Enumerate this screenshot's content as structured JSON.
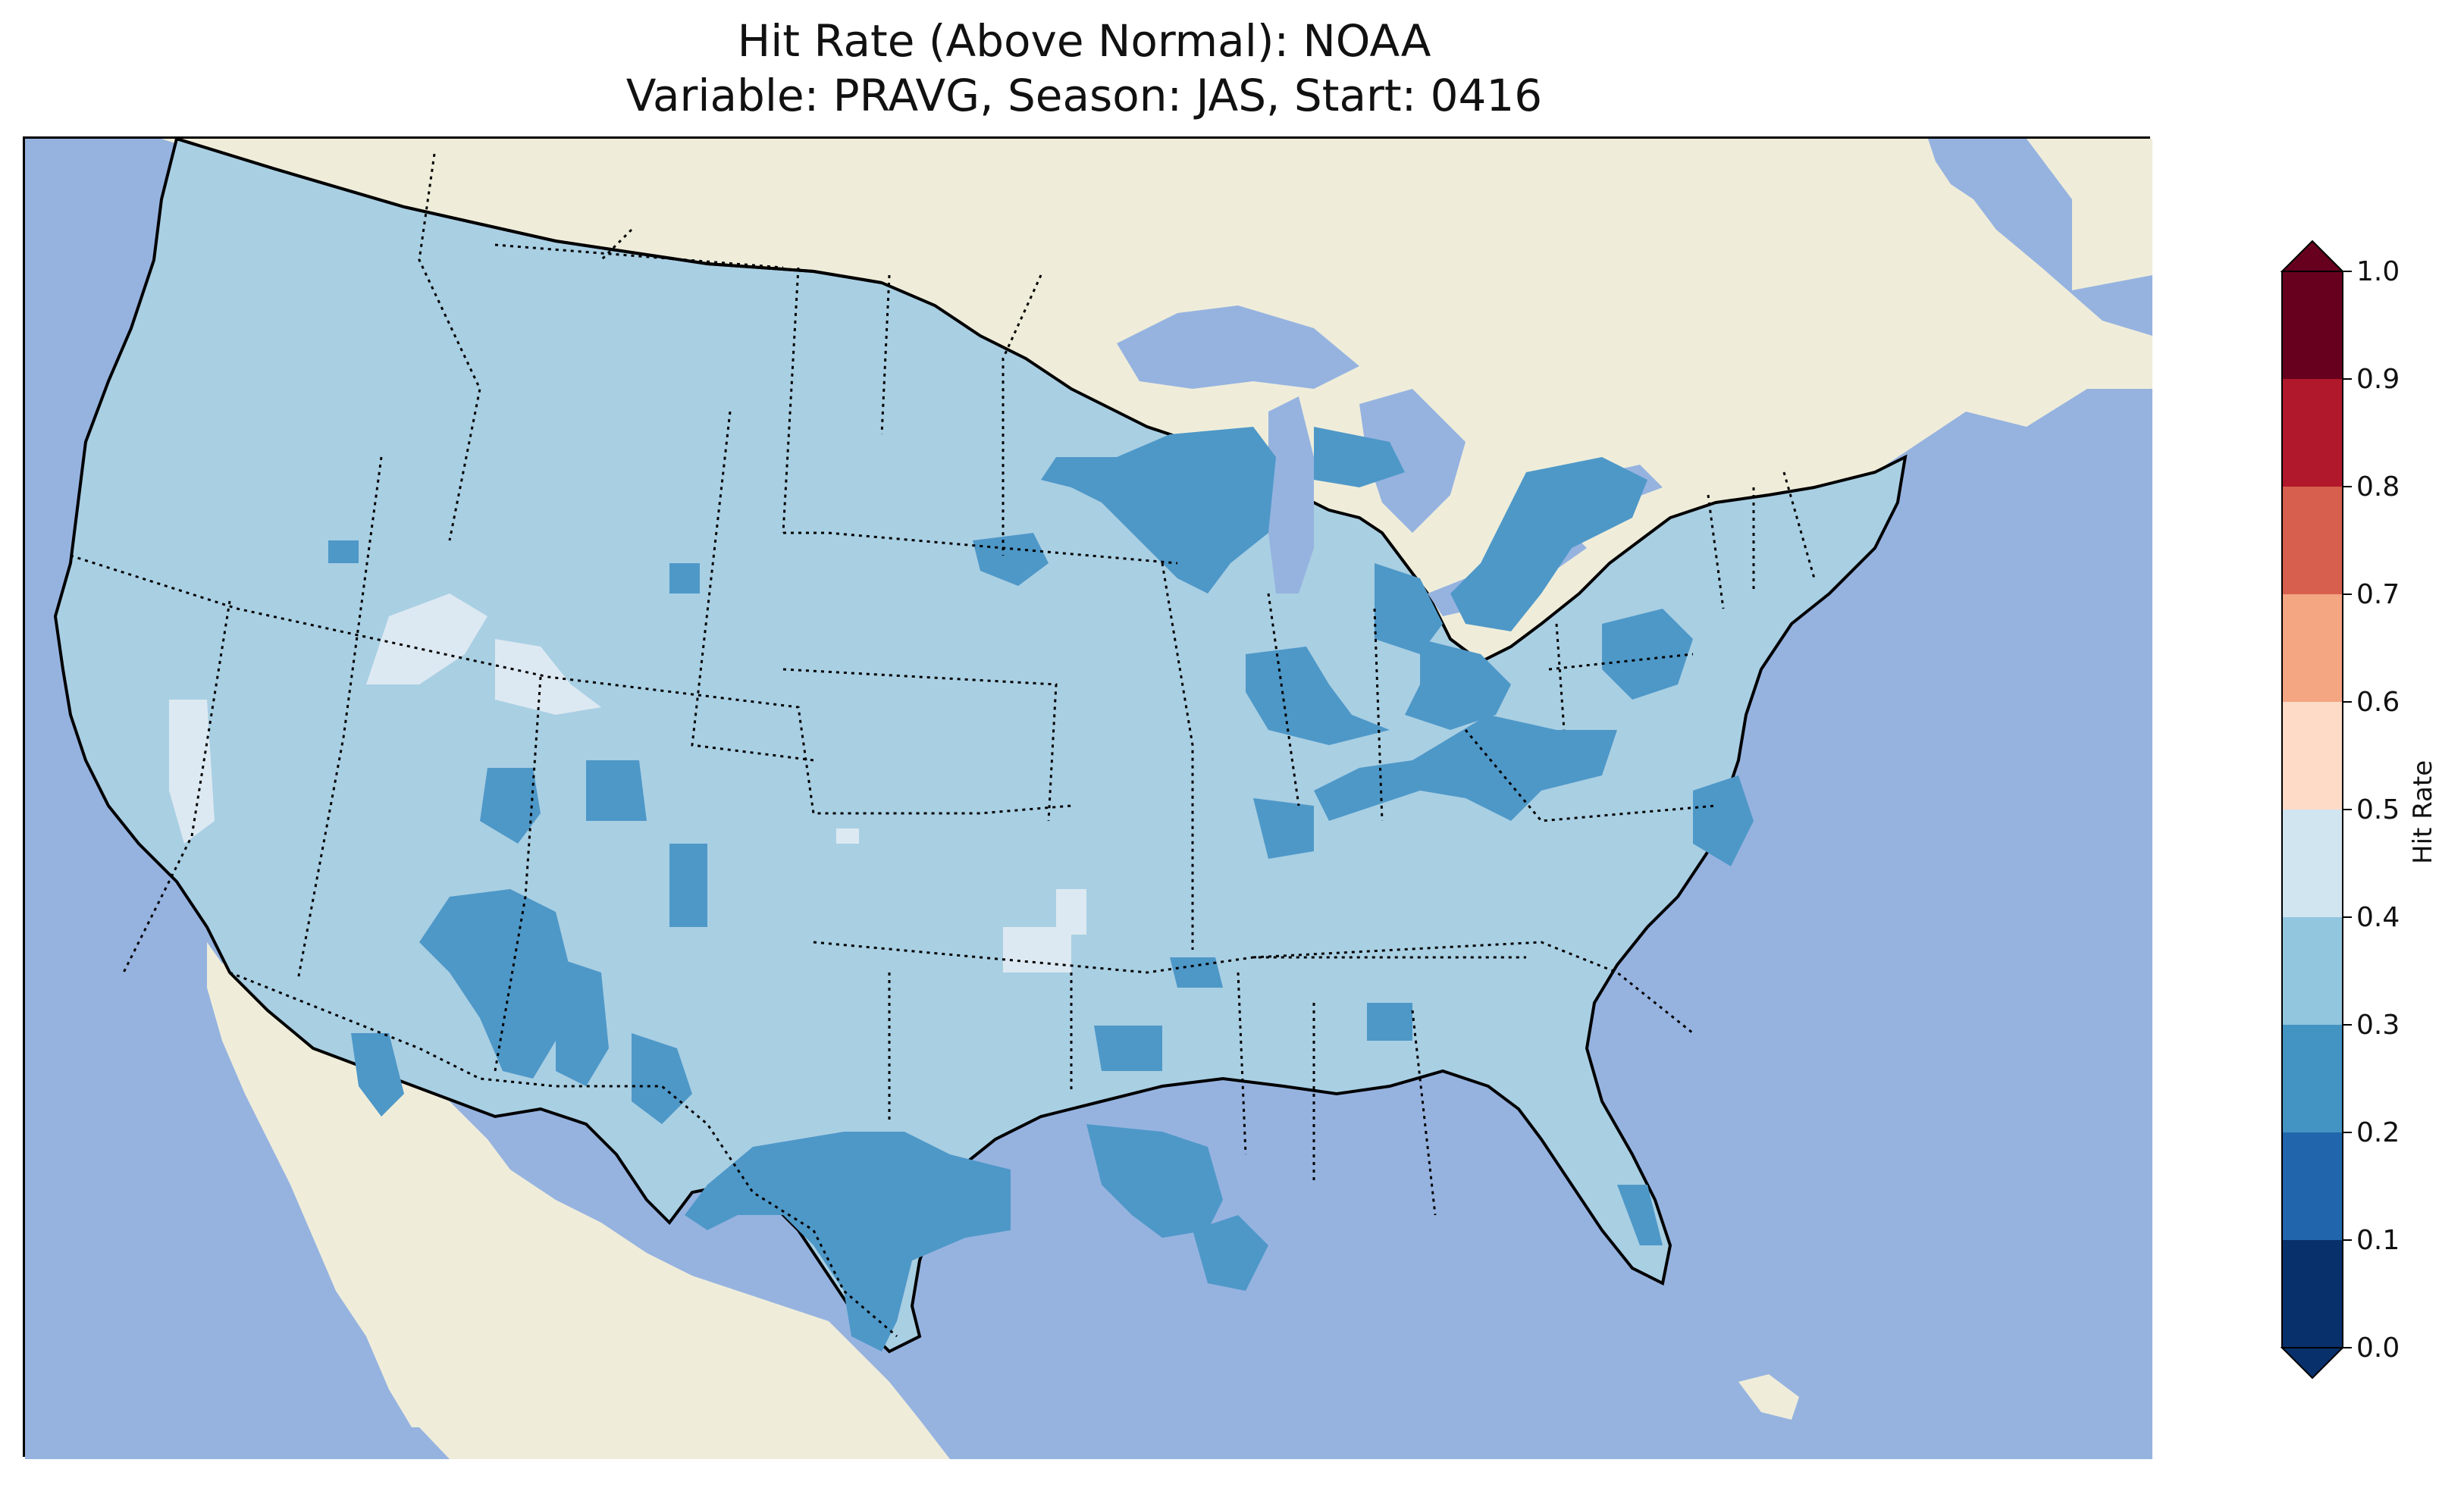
{
  "title": {
    "line1": "Hit Rate (Above Normal): NOAA",
    "line2": "Variable: PRAVG, Season: JAS, Start: 0416"
  },
  "colorbar": {
    "label": "Hit Rate",
    "ticks": [
      "0.0",
      "0.1",
      "0.2",
      "0.3",
      "0.4",
      "0.5",
      "0.6",
      "0.7",
      "0.8",
      "0.9",
      "1.0"
    ],
    "colors": [
      "#08306b",
      "#2166ac",
      "#4393c3",
      "#92c5de",
      "#d1e5f0",
      "#fddbc7",
      "#f4a582",
      "#d6604d",
      "#b2182b",
      "#67001f"
    ],
    "extend_low_color": "#08306b",
    "extend_high_color": "#67001f"
  },
  "map": {
    "ocean_color": "#96b3e0",
    "land_color": "#efedda",
    "field_base_color": "#a9cfe3",
    "field_low_color": "#4e98c8",
    "field_mid_color": "#dde9f2",
    "field_white_color": "#f5f0ea"
  },
  "chart_data": {
    "type": "heatmap",
    "title": "Hit Rate (Above Normal): NOAA",
    "subtitle": "Variable: PRAVG, Season: JAS, Start: 0416",
    "colorbar_label": "Hit Rate",
    "levels": [
      0.0,
      0.1,
      0.2,
      0.3,
      0.4,
      0.5,
      0.6,
      0.7,
      0.8,
      0.9,
      1.0
    ],
    "dominant_range": [
      0.3,
      0.4
    ],
    "secondary_range": [
      0.2,
      0.3
    ],
    "sparse_range": [
      0.4,
      0.5
    ]
  }
}
